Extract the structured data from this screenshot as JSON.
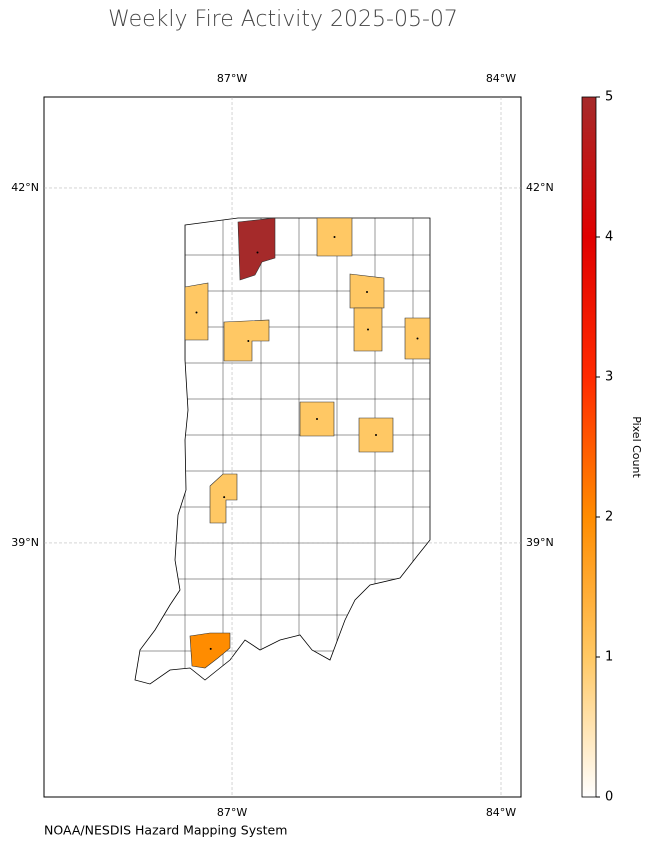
{
  "chart_data": {
    "type": "map",
    "title": "Weekly Fire Activity 2025-05-07",
    "source": "NOAA/NESDIS Hazard Mapping System",
    "xlim": [
      -89.097,
      -83.777
    ],
    "ylim": [
      36.853,
      42.769
    ],
    "xticks": [
      {
        "value": -87,
        "label": "87°W"
      },
      {
        "value": -84,
        "label": "84°W"
      }
    ],
    "yticks": [
      {
        "value": 42,
        "label": "42°N"
      },
      {
        "value": 39,
        "label": "39°N"
      }
    ],
    "grid": true,
    "values": [
      5,
      1,
      1,
      1,
      1,
      1,
      1,
      1,
      1,
      1,
      2
    ],
    "colorbar": {
      "label": "Pixel Count",
      "clim": [
        0,
        5
      ],
      "ticks": [
        0,
        1,
        2,
        3,
        4,
        5
      ],
      "colors": [
        "#ffffff",
        "#ffc864",
        "#ff8c00",
        "#ff2a00",
        "#e00000",
        "#a52a2a"
      ]
    }
  }
}
